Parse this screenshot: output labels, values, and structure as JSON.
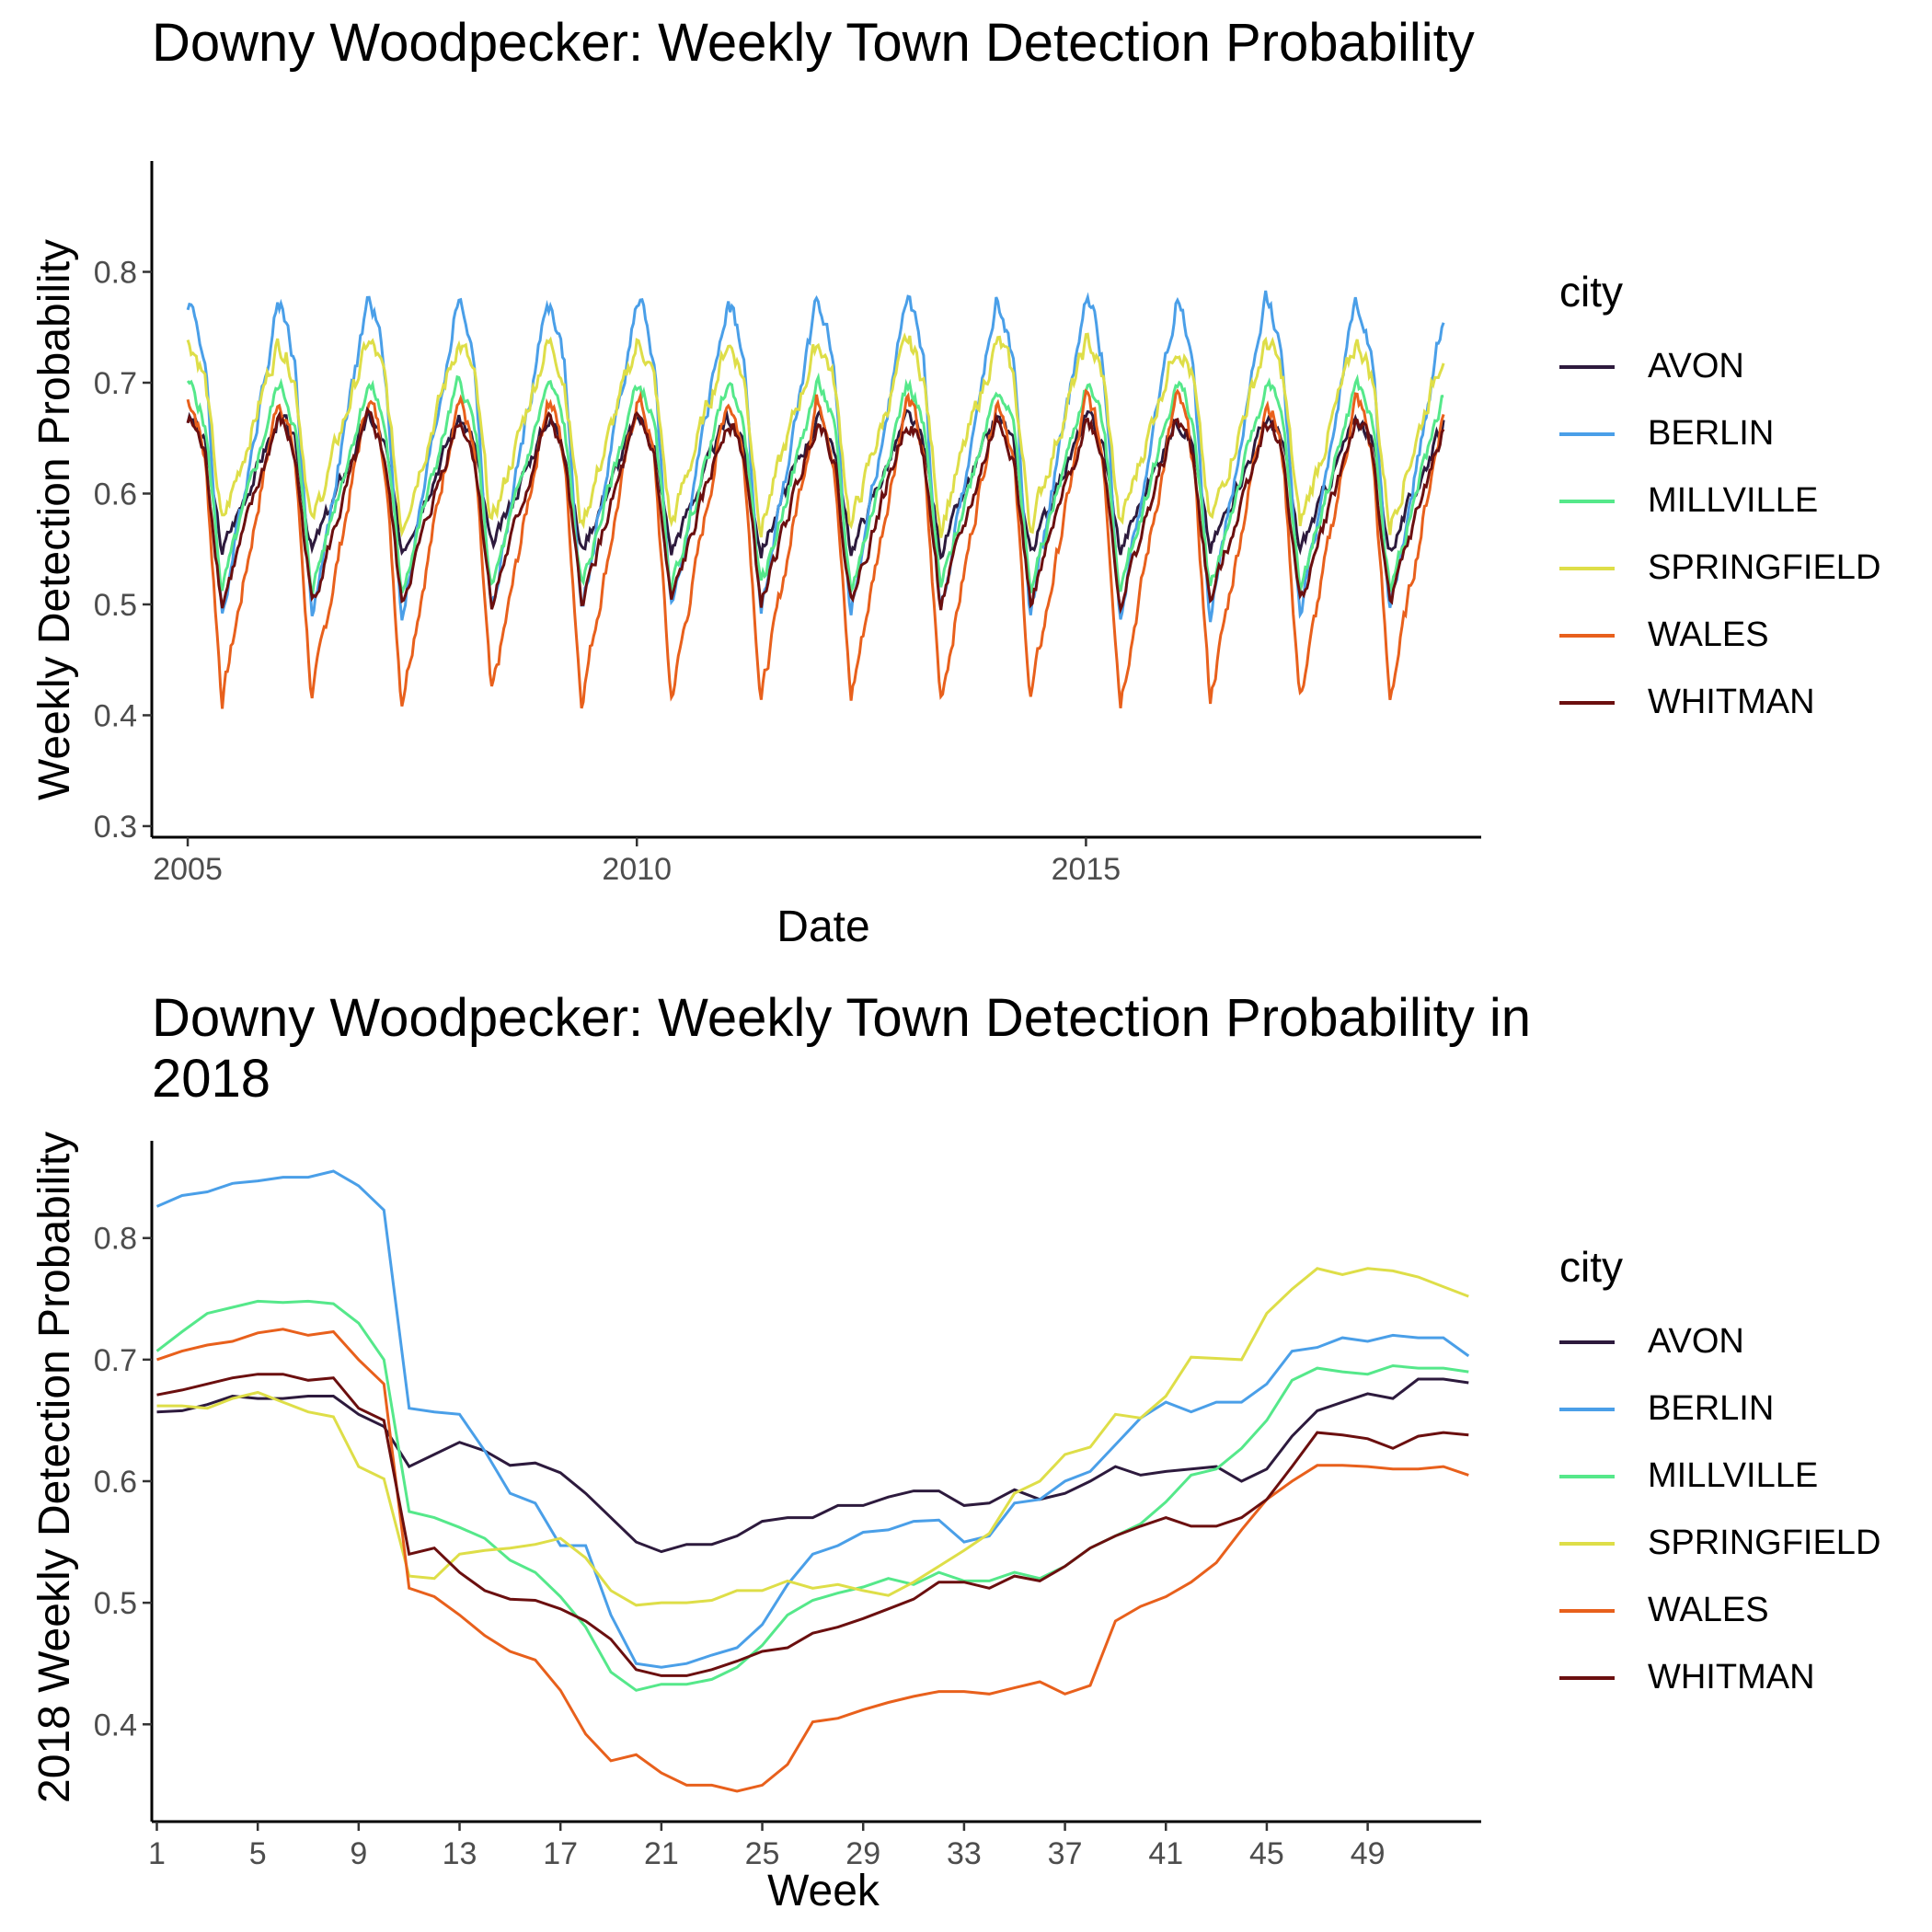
{
  "chart_data": [
    {
      "type": "line",
      "title": "Downy Woodpecker: Weekly Town Detection Probability",
      "xlabel": "Date",
      "ylabel": "Weekly Detection Probability",
      "xlim": [
        2004.6,
        2019.4
      ],
      "ylim": [
        0.29,
        0.9
      ],
      "x_ticks": [
        2005,
        2010,
        2015
      ],
      "y_ticks": [
        0.3,
        0.4,
        0.5,
        0.6,
        0.7,
        0.8
      ],
      "grid": false,
      "legend_position": "right",
      "legend_title": "city",
      "series": [
        {
          "name": "AVON",
          "color": "#2d1a3d",
          "base": 0.595,
          "amp": 0.09,
          "noise": 0.006
        },
        {
          "name": "BERLIN",
          "color": "#4a9fe8",
          "base": 0.6,
          "amp": 0.215,
          "noise": 0.007
        },
        {
          "name": "MILLVILLE",
          "color": "#55e88a",
          "base": 0.585,
          "amp": 0.14,
          "noise": 0.006
        },
        {
          "name": "SPRINGFIELD",
          "color": "#dede48",
          "base": 0.635,
          "amp": 0.125,
          "noise": 0.008
        },
        {
          "name": "WALES",
          "color": "#e8601c",
          "base": 0.52,
          "amp": 0.205,
          "noise": 0.007
        },
        {
          "name": "WHITMAN",
          "color": "#6b0f0f",
          "base": 0.565,
          "amp": 0.125,
          "noise": 0.006
        }
      ]
    },
    {
      "type": "line",
      "title": "Downy Woodpecker: Weekly Town Detection Probability in 2018",
      "xlabel": "Week",
      "ylabel": "2018 Weekly Detection Probability",
      "xlim": [
        0.8,
        53.5
      ],
      "ylim": [
        0.32,
        0.88
      ],
      "x_ticks": [
        1,
        5,
        9,
        13,
        17,
        21,
        25,
        29,
        33,
        37,
        41,
        45,
        49
      ],
      "y_ticks": [
        0.4,
        0.5,
        0.6,
        0.7,
        0.8
      ],
      "grid": false,
      "legend_position": "right",
      "legend_title": "city",
      "x": [
        1,
        2,
        3,
        4,
        5,
        6,
        7,
        8,
        9,
        10,
        11,
        12,
        13,
        14,
        15,
        16,
        17,
        18,
        19,
        20,
        21,
        22,
        23,
        24,
        25,
        26,
        27,
        28,
        29,
        30,
        31,
        32,
        33,
        34,
        35,
        36,
        37,
        38,
        39,
        40,
        41,
        42,
        43,
        44,
        45,
        46,
        47,
        48,
        49,
        50,
        51,
        52,
        53
      ],
      "series": [
        {
          "name": "AVON",
          "color": "#2d1a3d",
          "values": [
            0.657,
            0.658,
            0.663,
            0.67,
            0.668,
            0.668,
            0.67,
            0.67,
            0.655,
            0.645,
            0.612,
            0.622,
            0.632,
            0.625,
            0.613,
            0.615,
            0.607,
            0.59,
            0.57,
            0.55,
            0.542,
            0.548,
            0.548,
            0.555,
            0.567,
            0.57,
            0.57,
            0.58,
            0.58,
            0.587,
            0.592,
            0.592,
            0.58,
            0.582,
            0.593,
            0.585,
            0.59,
            0.6,
            0.612,
            0.605,
            0.608,
            0.61,
            0.612,
            0.6,
            0.61,
            0.637,
            0.658,
            0.665,
            0.672,
            0.668,
            0.684,
            0.684,
            0.681
          ]
        },
        {
          "name": "BERLIN",
          "color": "#4a9fe8",
          "values": [
            0.826,
            0.835,
            0.838,
            0.845,
            0.847,
            0.85,
            0.85,
            0.855,
            0.843,
            0.823,
            0.66,
            0.657,
            0.655,
            0.625,
            0.59,
            0.582,
            0.547,
            0.547,
            0.49,
            0.45,
            0.447,
            0.45,
            0.457,
            0.463,
            0.482,
            0.515,
            0.54,
            0.547,
            0.558,
            0.56,
            0.567,
            0.568,
            0.55,
            0.555,
            0.582,
            0.585,
            0.6,
            0.608,
            0.63,
            0.652,
            0.665,
            0.657,
            0.665,
            0.665,
            0.68,
            0.707,
            0.71,
            0.718,
            0.715,
            0.72,
            0.718,
            0.718,
            0.703
          ]
        },
        {
          "name": "MILLVILLE",
          "color": "#55e88a",
          "values": [
            0.707,
            0.723,
            0.738,
            0.743,
            0.748,
            0.747,
            0.748,
            0.746,
            0.73,
            0.7,
            0.575,
            0.57,
            0.562,
            0.553,
            0.535,
            0.525,
            0.505,
            0.48,
            0.443,
            0.428,
            0.433,
            0.433,
            0.437,
            0.447,
            0.465,
            0.49,
            0.502,
            0.508,
            0.513,
            0.52,
            0.515,
            0.525,
            0.518,
            0.518,
            0.525,
            0.52,
            0.53,
            0.545,
            0.555,
            0.565,
            0.583,
            0.605,
            0.61,
            0.627,
            0.65,
            0.683,
            0.693,
            0.69,
            0.688,
            0.695,
            0.693,
            0.693,
            0.69
          ]
        },
        {
          "name": "SPRINGFIELD",
          "color": "#dede48",
          "values": [
            0.662,
            0.662,
            0.66,
            0.668,
            0.673,
            0.665,
            0.657,
            0.653,
            0.612,
            0.602,
            0.522,
            0.52,
            0.54,
            0.543,
            0.545,
            0.548,
            0.553,
            0.537,
            0.51,
            0.498,
            0.5,
            0.5,
            0.502,
            0.51,
            0.51,
            0.518,
            0.512,
            0.515,
            0.51,
            0.506,
            0.517,
            0.53,
            0.543,
            0.557,
            0.59,
            0.6,
            0.622,
            0.628,
            0.655,
            0.652,
            0.67,
            0.702,
            0.701,
            0.7,
            0.738,
            0.758,
            0.775,
            0.77,
            0.775,
            0.773,
            0.768,
            0.76,
            0.752
          ]
        },
        {
          "name": "WALES",
          "color": "#e8601c",
          "values": [
            0.7,
            0.707,
            0.712,
            0.715,
            0.722,
            0.725,
            0.72,
            0.723,
            0.7,
            0.68,
            0.512,
            0.505,
            0.49,
            0.473,
            0.46,
            0.453,
            0.428,
            0.392,
            0.37,
            0.375,
            0.36,
            0.35,
            0.35,
            0.345,
            0.35,
            0.367,
            0.402,
            0.405,
            0.412,
            0.418,
            0.423,
            0.427,
            0.427,
            0.425,
            0.43,
            0.435,
            0.425,
            0.432,
            0.485,
            0.497,
            0.505,
            0.517,
            0.533,
            0.56,
            0.585,
            0.6,
            0.613,
            0.613,
            0.612,
            0.61,
            0.61,
            0.612,
            0.605
          ]
        },
        {
          "name": "WHITMAN",
          "color": "#6b0f0f",
          "values": [
            0.671,
            0.675,
            0.68,
            0.685,
            0.688,
            0.688,
            0.683,
            0.685,
            0.66,
            0.65,
            0.54,
            0.545,
            0.525,
            0.51,
            0.503,
            0.502,
            0.495,
            0.485,
            0.47,
            0.445,
            0.44,
            0.44,
            0.445,
            0.452,
            0.46,
            0.463,
            0.475,
            0.48,
            0.487,
            0.495,
            0.503,
            0.517,
            0.517,
            0.512,
            0.522,
            0.518,
            0.53,
            0.545,
            0.555,
            0.563,
            0.57,
            0.563,
            0.563,
            0.57,
            0.585,
            0.612,
            0.64,
            0.638,
            0.635,
            0.627,
            0.637,
            0.64,
            0.638
          ]
        }
      ]
    }
  ]
}
